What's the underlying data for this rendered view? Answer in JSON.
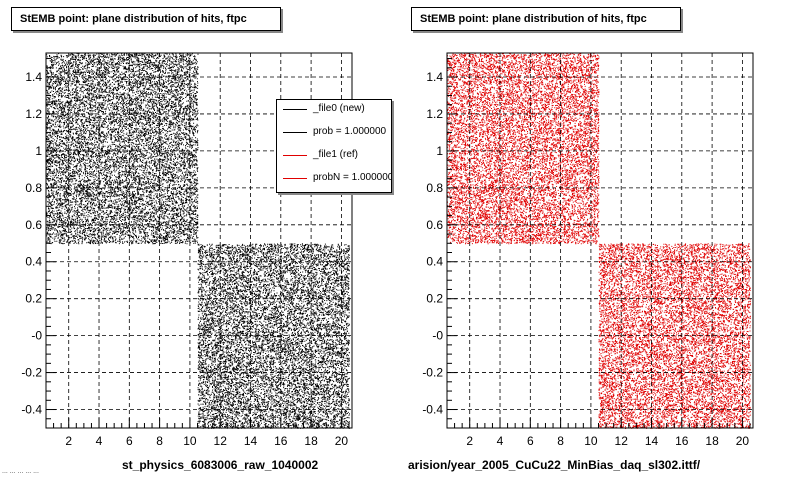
{
  "panels": [
    {
      "title": "StEMB point: plane distribution of hits, ftpc",
      "bottom_label": "st_physics_6083006_raw_1040002",
      "color": "#000000"
    },
    {
      "title": "StEMB point: plane distribution of hits, ftpc",
      "bottom_label": "arision/year_2005_CuCu22_MinBias_daq_sl302.ittf/",
      "color": "#e00000"
    }
  ],
  "legend": {
    "entries": [
      {
        "label": "_file0 (new)",
        "color": "#000000"
      },
      {
        "label": "prob = 1.000000",
        "color": "#000000"
      },
      {
        "label": "_file1 (ref)",
        "color": "#e00000"
      },
      {
        "label": "probN = 1.000000",
        "color": "#e00000"
      }
    ]
  },
  "corner_text": "... ... ... ... ...",
  "chart_data": [
    {
      "type": "scatter",
      "title": "StEMB point: plane distribution of hits, ftpc",
      "xlabel": "st_physics_6083006_raw_1040002",
      "ylabel": "",
      "xlim": [
        0.5,
        20.7
      ],
      "ylim": [
        -0.5,
        1.53
      ],
      "x_ticks": [
        2,
        4,
        6,
        8,
        10,
        12,
        14,
        16,
        18,
        20
      ],
      "y_ticks": [
        -0.4,
        -0.2,
        0,
        0.2,
        0.4,
        0.6,
        0.8,
        1,
        1.2,
        1.4
      ],
      "y_tick_labels": [
        "-0.4",
        "-0.2",
        "-0",
        "0.2",
        "0.4",
        "0.6",
        "0.8",
        "1",
        "1.2",
        "1.4"
      ],
      "grid": true,
      "series": [
        {
          "name": "_file0 (new)",
          "color": "#000000",
          "regions": [
            {
              "x": [
                0.5,
                10.5
              ],
              "y": [
                0.5,
                1.53
              ]
            },
            {
              "x": [
                10.5,
                20.5
              ],
              "y": [
                -0.5,
                0.5
              ]
            }
          ]
        }
      ]
    },
    {
      "type": "scatter",
      "title": "StEMB point: plane distribution of hits, ftpc",
      "xlabel": "arision/year_2005_CuCu22_MinBias_daq_sl302.ittf/",
      "ylabel": "",
      "xlim": [
        0.5,
        20.7
      ],
      "ylim": [
        -0.5,
        1.53
      ],
      "x_ticks": [
        2,
        4,
        6,
        8,
        10,
        12,
        14,
        16,
        18,
        20
      ],
      "y_ticks": [
        -0.4,
        -0.2,
        0,
        0.2,
        0.4,
        0.6,
        0.8,
        1,
        1.2,
        1.4
      ],
      "y_tick_labels": [
        "-0.4",
        "-0.2",
        "-0",
        "0.2",
        "0.4",
        "0.6",
        "0.8",
        "1",
        "1.2",
        "1.4"
      ],
      "grid": true,
      "series": [
        {
          "name": "_file1 (ref)",
          "color": "#e00000",
          "regions": [
            {
              "x": [
                0.5,
                10.5
              ],
              "y": [
                0.5,
                1.53
              ]
            },
            {
              "x": [
                10.5,
                20.5
              ],
              "y": [
                -0.5,
                0.5
              ]
            }
          ]
        }
      ]
    }
  ]
}
